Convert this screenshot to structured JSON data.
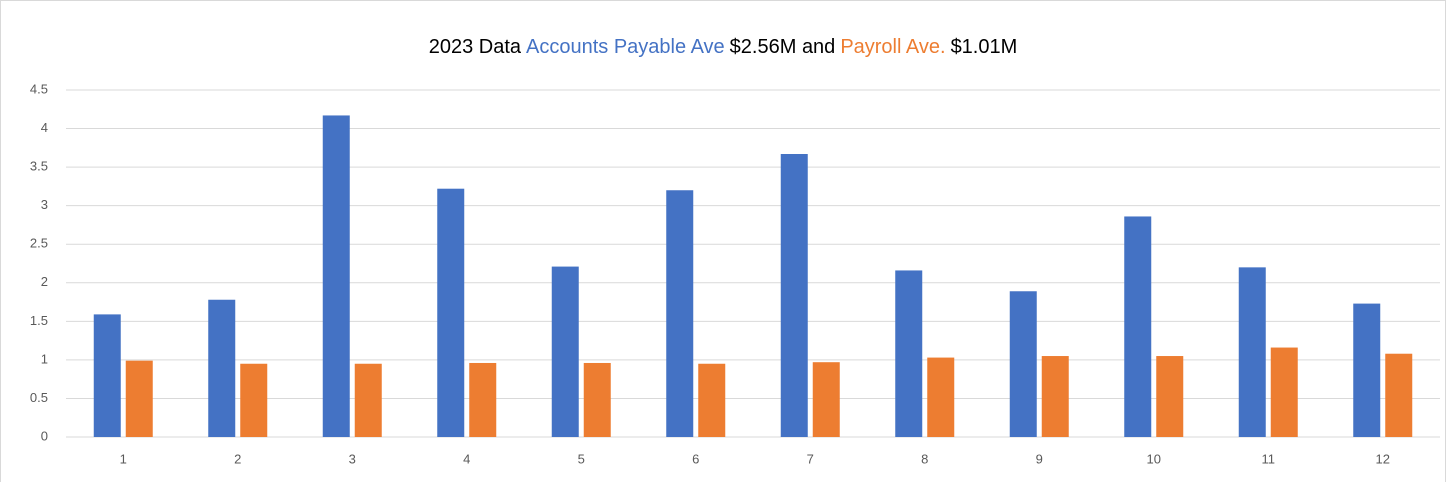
{
  "chart_data": {
    "type": "bar",
    "title_parts": [
      {
        "text": "2023 Data",
        "color": "#000000"
      },
      {
        "text": "Accounts Payable Ave",
        "color": "#4472c4"
      },
      {
        "text": "$2.56M and",
        "color": "#000000"
      },
      {
        "text": "Payroll Ave.",
        "color": "#ed7d31"
      },
      {
        "text": "$1.01M",
        "color": "#000000"
      }
    ],
    "categories": [
      1,
      2,
      3,
      4,
      5,
      6,
      7,
      8,
      9,
      10,
      11,
      12
    ],
    "series": [
      {
        "color": "#4472c4",
        "values": [
          1.59,
          1.78,
          4.17,
          3.22,
          2.21,
          3.2,
          3.67,
          2.16,
          1.89,
          2.86,
          2.2,
          1.73
        ]
      },
      {
        "color": "#ed7d31",
        "values": [
          0.99,
          0.95,
          0.95,
          0.96,
          0.96,
          0.95,
          0.97,
          1.03,
          1.05,
          1.05,
          1.16,
          1.08
        ]
      }
    ],
    "ylim": [
      0,
      4.5
    ],
    "yticks": [
      0,
      0.5,
      1,
      1.5,
      2,
      2.5,
      3,
      3.5,
      4,
      4.5
    ],
    "grid": true
  }
}
